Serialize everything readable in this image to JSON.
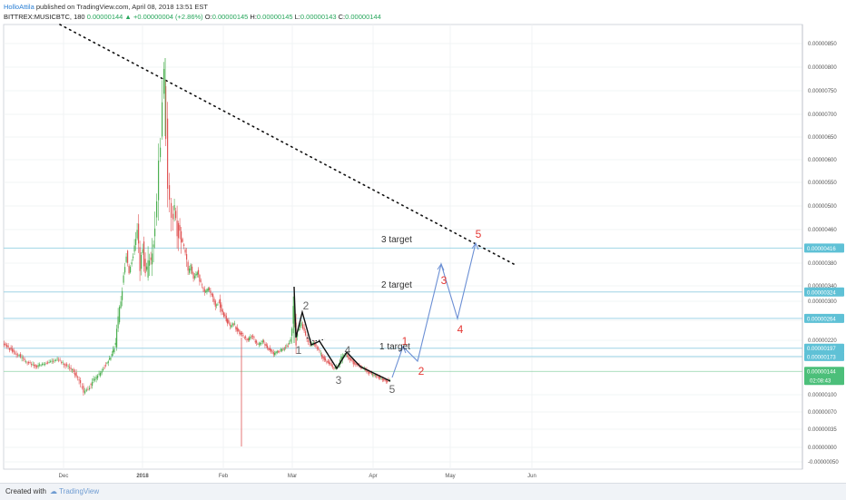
{
  "header": {
    "author": "HolloAttila",
    "published": "published on TradingView.com, April 08, 2018 13:51 EST",
    "symbol": "BITTREX:MUSICBTC, 180",
    "last": "0.00000144",
    "change": "+0.00000004 (+2.86%)",
    "o_label": "O:",
    "o_value": "0.00000145",
    "h_label": "H:",
    "h_value": "0.00000145",
    "l_label": "L:",
    "l_value": "0.00000143",
    "c_label": "C:",
    "c_value": "0.00000144"
  },
  "footer": {
    "created": "Created with",
    "brand": "TradingView"
  },
  "colors": {
    "up": "#4caf50",
    "down": "#e05555",
    "wave": "#6b8fd4",
    "level": "#9fd4e6",
    "tag": "#5fc1d6",
    "price_tag": "#4cbf7a",
    "red_label": "#e53935",
    "gray_label": "#666666"
  },
  "chart_data": {
    "type": "candlestick",
    "x_tick_labels": [
      "Dec",
      "2018",
      "Feb",
      "Mar",
      "Apr",
      "May",
      "Jun"
    ],
    "y_tick_labels": [
      "0.00000850",
      "0.00000800",
      "0.00000750",
      "0.00000700",
      "0.00000650",
      "0.00000600",
      "0.00000550",
      "0.00000500",
      "0.00000460",
      "0.00000380",
      "0.00000340",
      "0.00000300",
      "0.00000260",
      "0.00000220",
      "0.00000170",
      "0.00000100",
      "0.00000070",
      "0.00000035",
      "0.00000000",
      "-0.00000050"
    ],
    "price_levels": [
      {
        "value": "0.00000416",
        "label": "3 target"
      },
      {
        "value": "0.00000324",
        "label": "2 target"
      },
      {
        "value": "0.00000264",
        "label": ""
      },
      {
        "value": "0.00000197",
        "label": "1 target"
      },
      {
        "value": "0.00000173",
        "label": ""
      }
    ],
    "last_price": "0.00000144",
    "countdown": "02:08:43",
    "completed_wave_labels": [
      "1",
      "2",
      "3",
      "4",
      "5"
    ],
    "projected_wave_labels": [
      "1",
      "2",
      "3",
      "4",
      "5"
    ],
    "target_labels": [
      "1 target",
      "2 target",
      "3 target"
    ]
  }
}
